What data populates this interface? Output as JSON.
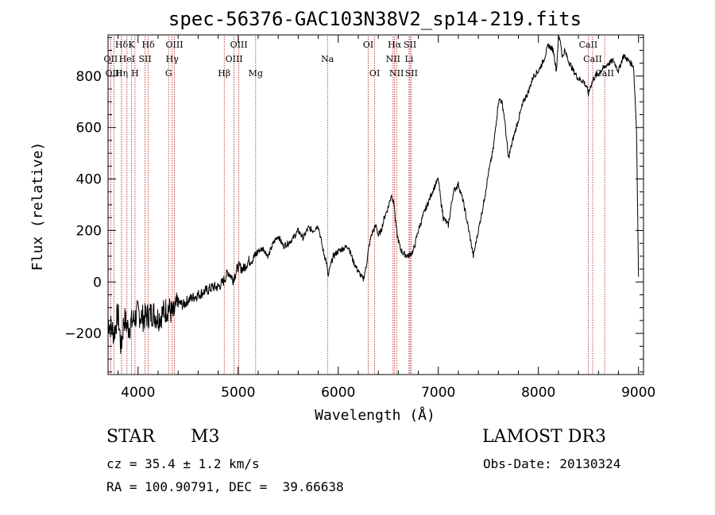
{
  "chart_data": {
    "type": "line",
    "title": "spec-56376-GAC103N38V2_sp14-219.fits",
    "xlabel": "Wavelength (Å)",
    "ylabel": "Flux (relative)",
    "xlim": [
      3700,
      9050
    ],
    "ylim": [
      -360,
      960
    ],
    "x_ticks": [
      4000,
      5000,
      6000,
      7000,
      8000,
      9000
    ],
    "x_tick_labels": [
      "4000",
      "5000",
      "6000",
      "7000",
      "8000",
      "9000"
    ],
    "y_ticks": [
      -200,
      0,
      200,
      400,
      600,
      800
    ],
    "y_tick_labels": [
      "−200",
      "0",
      "200",
      "400",
      "600",
      "800"
    ],
    "series": [
      {
        "name": "spectrum",
        "color": "#000000",
        "x": [
          3700,
          3760,
          3800,
          3830,
          3860,
          3900,
          3950,
          4000,
          4050,
          4100,
          4150,
          4200,
          4250,
          4300,
          4350,
          4400,
          4450,
          4500,
          4550,
          4600,
          4650,
          4700,
          4750,
          4800,
          4850,
          4900,
          4950,
          5000,
          5050,
          5100,
          5150,
          5200,
          5250,
          5300,
          5350,
          5400,
          5450,
          5500,
          5550,
          5600,
          5650,
          5700,
          5750,
          5800,
          5850,
          5880,
          5900,
          5920,
          5950,
          6000,
          6050,
          6100,
          6150,
          6200,
          6250,
          6280,
          6300,
          6330,
          6350,
          6380,
          6400,
          6430,
          6460,
          6500,
          6530,
          6560,
          6570,
          6590,
          6620,
          6650,
          6700,
          6750,
          6800,
          6850,
          6900,
          6950,
          7000,
          7020,
          7050,
          7100,
          7150,
          7200,
          7250,
          7300,
          7350,
          7400,
          7450,
          7500,
          7550,
          7600,
          7620,
          7640,
          7660,
          7680,
          7700,
          7750,
          7800,
          7850,
          7900,
          7950,
          8000,
          8050,
          8100,
          8150,
          8180,
          8200,
          8220,
          8240,
          8260,
          8300,
          8350,
          8400,
          8450,
          8480,
          8500,
          8520,
          8550,
          8600,
          8650,
          8700,
          8750,
          8800,
          8850,
          8900,
          8950,
          8980,
          9000
        ],
        "y": [
          -150,
          -200,
          -120,
          -260,
          -140,
          -180,
          -150,
          -120,
          -140,
          -130,
          -120,
          -140,
          -120,
          -100,
          -130,
          -80,
          -90,
          -70,
          -60,
          -50,
          -40,
          -30,
          -20,
          -20,
          0,
          40,
          10,
          60,
          50,
          80,
          90,
          120,
          130,
          100,
          150,
          180,
          140,
          150,
          170,
          200,
          170,
          210,
          200,
          220,
          120,
          80,
          20,
          60,
          100,
          120,
          130,
          140,
          80,
          40,
          10,
          60,
          120,
          180,
          200,
          220,
          180,
          200,
          250,
          290,
          340,
          300,
          240,
          180,
          130,
          110,
          100,
          120,
          200,
          260,
          310,
          360,
          400,
          330,
          250,
          220,
          350,
          380,
          310,
          210,
          100,
          200,
          300,
          420,
          520,
          700,
          710,
          690,
          640,
          560,
          480,
          560,
          630,
          700,
          740,
          800,
          820,
          860,
          920,
          900,
          820,
          950,
          940,
          870,
          900,
          860,
          820,
          790,
          780,
          760,
          730,
          760,
          790,
          810,
          830,
          850,
          860,
          820,
          880,
          860,
          840,
          600,
          20
        ]
      }
    ],
    "lines": [
      {
        "label": "Hδ",
        "x": 3835,
        "row": 0
      },
      {
        "label": "K",
        "x": 3934,
        "row": 0
      },
      {
        "label": "Hδ",
        "x": 4102,
        "row": 0
      },
      {
        "label": "OIII",
        "x": 4363,
        "row": 0
      },
      {
        "label": "OIII",
        "x": 5007,
        "row": 0
      },
      {
        "label": "OI",
        "x": 6300,
        "row": 0
      },
      {
        "label": "Hα",
        "x": 6563,
        "row": 0
      },
      {
        "label": "SII",
        "x": 6717,
        "row": 0
      },
      {
        "label": "CaII",
        "x": 8498,
        "row": 0
      },
      {
        "label": "OII",
        "x": 3727,
        "row": 1
      },
      {
        "label": "HeI",
        "x": 3889,
        "row": 1
      },
      {
        "label": "SII",
        "x": 4070,
        "row": 1
      },
      {
        "label": "Hγ",
        "x": 4341,
        "row": 1
      },
      {
        "label": "OIII",
        "x": 4959,
        "row": 1
      },
      {
        "label": "Na",
        "x": 5893,
        "row": 1
      },
      {
        "label": "NII",
        "x": 6548,
        "row": 1
      },
      {
        "label": "Li",
        "x": 6708,
        "row": 1
      },
      {
        "label": "CaII",
        "x": 8542,
        "row": 1
      },
      {
        "label": "OIII",
        "x": 3760,
        "row": 2
      },
      {
        "label": "Hη",
        "x": 3835,
        "row": 2
      },
      {
        "label": "H",
        "x": 3969,
        "row": 2
      },
      {
        "label": "G",
        "x": 4305,
        "row": 2
      },
      {
        "label": "Hβ",
        "x": 4861,
        "row": 2
      },
      {
        "label": "Mg",
        "x": 5175,
        "row": 2
      },
      {
        "label": "OI",
        "x": 6364,
        "row": 2
      },
      {
        "label": "NII",
        "x": 6583,
        "row": 2
      },
      {
        "label": "SII",
        "x": 6731,
        "row": 2
      },
      {
        "label": "CaII",
        "x": 8662,
        "row": 2
      }
    ]
  },
  "info": {
    "object_type": "STAR",
    "subclass": "M3",
    "survey": "LAMOST DR3",
    "cz": "cz = 35.4 ± 1.2 km/s",
    "obs_date": "Obs-Date: 20130324",
    "coords": "RA = 100.90791, DEC =  39.66638"
  },
  "colors": {
    "line_marker": "#b01818",
    "spectrum": "#000000"
  }
}
